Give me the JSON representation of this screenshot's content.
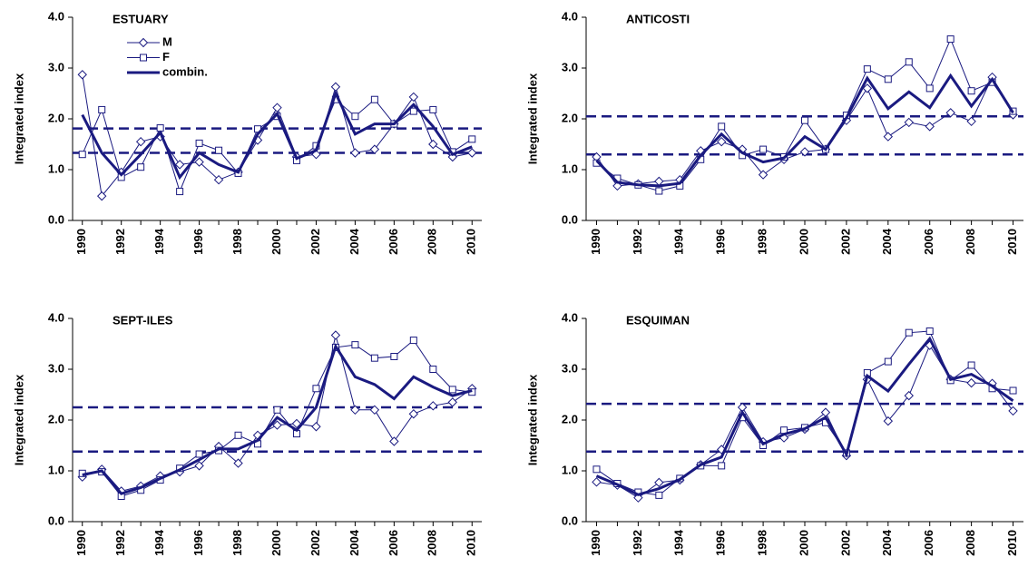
{
  "chart_data": [
    {
      "type": "line",
      "title": "ESTUARY",
      "ylabel": "Integrated index",
      "legend": "upper left",
      "x": [
        1990,
        1991,
        1992,
        1993,
        1994,
        1995,
        1996,
        1997,
        1998,
        1999,
        2000,
        2001,
        2002,
        2003,
        2004,
        2005,
        2006,
        2007,
        2008,
        2009,
        2010
      ],
      "xlim": [
        1989.5,
        2010.5
      ],
      "xticks": [
        1990,
        1992,
        1994,
        1996,
        1998,
        2000,
        2002,
        2004,
        2006,
        2008,
        2010
      ],
      "ylim": [
        0,
        4
      ],
      "yticks": [
        {
          "value": 0,
          "label": "0.0"
        },
        {
          "value": 1,
          "label": "1.0"
        },
        {
          "value": 2,
          "label": "2.0"
        },
        {
          "value": 3,
          "label": "3.0"
        },
        {
          "value": 4,
          "label": "4.0"
        }
      ],
      "hlines": [
        1.33,
        1.81
      ],
      "series": [
        {
          "name": "M",
          "color": "#1a1a80",
          "marker": "diamond",
          "width": 1,
          "values": [
            2.87,
            0.48,
            0.95,
            1.55,
            1.65,
            1.1,
            1.15,
            0.8,
            0.95,
            1.58,
            2.22,
            1.25,
            1.3,
            2.63,
            1.33,
            1.4,
            1.9,
            2.43,
            1.5,
            1.25,
            1.33
          ]
        },
        {
          "name": "F",
          "color": "#1a1a80",
          "marker": "square",
          "width": 1,
          "values": [
            1.3,
            2.18,
            0.85,
            1.05,
            1.82,
            0.57,
            1.52,
            1.38,
            0.93,
            1.8,
            2.05,
            1.18,
            1.47,
            2.38,
            2.05,
            2.38,
            1.9,
            2.15,
            2.18,
            1.35,
            1.6
          ]
        },
        {
          "name": "combin.",
          "color": "#1a1a80",
          "marker": "none",
          "width": 3,
          "values": [
            2.08,
            1.33,
            0.9,
            1.3,
            1.73,
            0.85,
            1.33,
            1.1,
            0.95,
            1.7,
            2.1,
            1.22,
            1.38,
            2.5,
            1.7,
            1.9,
            1.9,
            2.28,
            1.85,
            1.3,
            1.45
          ]
        }
      ]
    },
    {
      "type": "line",
      "title": "ANTICOSTI",
      "ylabel": "Integrated index",
      "x": [
        1990,
        1991,
        1992,
        1993,
        1994,
        1995,
        1996,
        1997,
        1998,
        1999,
        2000,
        2001,
        2002,
        2003,
        2004,
        2005,
        2006,
        2007,
        2008,
        2009,
        2010
      ],
      "xlim": [
        1989.5,
        2010.5
      ],
      "xticks": [
        1990,
        1992,
        1994,
        1996,
        1998,
        2000,
        2002,
        2004,
        2006,
        2008,
        2010
      ],
      "ylim": [
        0,
        4
      ],
      "yticks": [
        {
          "value": 0,
          "label": "0.0"
        },
        {
          "value": 1,
          "label": "1.0"
        },
        {
          "value": 2,
          "label": "2.0"
        },
        {
          "value": 3,
          "label": "3.0"
        },
        {
          "value": 4,
          "label": "4.0"
        }
      ],
      "hlines": [
        1.3,
        2.05
      ],
      "series": [
        {
          "color": "#1a1a80",
          "marker": "diamond",
          "width": 1,
          "values": [
            1.25,
            0.68,
            0.72,
            0.77,
            0.8,
            1.37,
            1.55,
            1.4,
            0.9,
            1.2,
            1.35,
            1.4,
            1.97,
            2.6,
            1.65,
            1.93,
            1.85,
            2.12,
            1.95,
            2.82,
            2.08
          ]
        },
        {
          "color": "#1a1a80",
          "marker": "square",
          "width": 1,
          "values": [
            1.13,
            0.83,
            0.7,
            0.58,
            0.68,
            1.2,
            1.85,
            1.28,
            1.4,
            1.25,
            1.97,
            1.4,
            2.07,
            2.98,
            2.78,
            3.12,
            2.6,
            3.57,
            2.55,
            2.72,
            2.15
          ]
        },
        {
          "color": "#1a1a80",
          "marker": "none",
          "width": 3,
          "values": [
            1.18,
            0.75,
            0.7,
            0.68,
            0.73,
            1.28,
            1.7,
            1.33,
            1.15,
            1.23,
            1.65,
            1.4,
            2.02,
            2.8,
            2.2,
            2.53,
            2.22,
            2.85,
            2.25,
            2.78,
            2.12
          ]
        }
      ]
    },
    {
      "type": "line",
      "title": "SEPT-ILES",
      "ylabel": "Integrated index",
      "x": [
        1990,
        1991,
        1992,
        1993,
        1994,
        1995,
        1996,
        1997,
        1998,
        1999,
        2000,
        2001,
        2002,
        2003,
        2004,
        2005,
        2006,
        2007,
        2008,
        2009,
        2010
      ],
      "xlim": [
        1989.5,
        2010.5
      ],
      "xticks": [
        1990,
        1992,
        1994,
        1996,
        1998,
        2000,
        2002,
        2004,
        2006,
        2008,
        2010
      ],
      "ylim": [
        0,
        4
      ],
      "yticks": [
        {
          "value": 0,
          "label": "0.0"
        },
        {
          "value": 1,
          "label": "1.0"
        },
        {
          "value": 2,
          "label": "2.0"
        },
        {
          "value": 3,
          "label": "3.0"
        },
        {
          "value": 4,
          "label": "4.0"
        }
      ],
      "hlines": [
        1.38,
        2.25
      ],
      "series": [
        {
          "color": "#1a1a80",
          "marker": "diamond",
          "width": 1,
          "values": [
            0.88,
            1.03,
            0.6,
            0.7,
            0.9,
            0.98,
            1.1,
            1.48,
            1.15,
            1.7,
            1.9,
            1.93,
            1.87,
            3.67,
            2.2,
            2.2,
            1.58,
            2.12,
            2.28,
            2.35,
            2.62
          ]
        },
        {
          "color": "#1a1a80",
          "marker": "square",
          "width": 1,
          "values": [
            0.95,
            0.98,
            0.5,
            0.62,
            0.82,
            1.05,
            1.33,
            1.4,
            1.7,
            1.53,
            2.2,
            1.73,
            2.62,
            3.43,
            3.48,
            3.22,
            3.25,
            3.57,
            3.0,
            2.6,
            2.55
          ]
        },
        {
          "color": "#1a1a80",
          "marker": "none",
          "width": 3,
          "values": [
            0.92,
            1.0,
            0.55,
            0.67,
            0.85,
            1.02,
            1.22,
            1.43,
            1.43,
            1.6,
            2.05,
            1.8,
            2.25,
            3.45,
            2.85,
            2.7,
            2.42,
            2.85,
            2.65,
            2.48,
            2.58
          ]
        }
      ]
    },
    {
      "type": "line",
      "title": "ESQUIMAN",
      "ylabel": "Integrated index",
      "x": [
        1990,
        1991,
        1992,
        1993,
        1994,
        1995,
        1996,
        1997,
        1998,
        1999,
        2000,
        2001,
        2002,
        2003,
        2004,
        2005,
        2006,
        2007,
        2008,
        2009,
        2010
      ],
      "xlim": [
        1989.5,
        2010.5
      ],
      "xticks": [
        1990,
        1992,
        1994,
        1996,
        1998,
        2000,
        2002,
        2004,
        2006,
        2008,
        2010
      ],
      "ylim": [
        0,
        4
      ],
      "yticks": [
        {
          "value": 0,
          "label": "0.0"
        },
        {
          "value": 1,
          "label": "1.0"
        },
        {
          "value": 2,
          "label": "2.0"
        },
        {
          "value": 3,
          "label": "3.0"
        },
        {
          "value": 4,
          "label": "4.0"
        }
      ],
      "hlines": [
        1.38,
        2.32
      ],
      "series": [
        {
          "color": "#1a1a80",
          "marker": "diamond",
          "width": 1,
          "values": [
            0.78,
            0.72,
            0.47,
            0.77,
            0.82,
            1.12,
            1.42,
            2.25,
            1.57,
            1.65,
            1.82,
            2.15,
            1.3,
            2.8,
            1.98,
            2.48,
            3.47,
            2.8,
            2.73,
            2.72,
            2.18
          ]
        },
        {
          "color": "#1a1a80",
          "marker": "square",
          "width": 1,
          "values": [
            1.03,
            0.75,
            0.58,
            0.52,
            0.85,
            1.1,
            1.1,
            2.05,
            1.5,
            1.8,
            1.85,
            1.95,
            1.35,
            2.93,
            3.15,
            3.72,
            3.75,
            2.78,
            3.08,
            2.62,
            2.58
          ]
        },
        {
          "color": "#1a1a80",
          "marker": "none",
          "width": 3,
          "values": [
            0.9,
            0.73,
            0.53,
            0.65,
            0.83,
            1.12,
            1.27,
            2.15,
            1.53,
            1.72,
            1.83,
            2.05,
            1.32,
            2.87,
            2.57,
            3.1,
            3.6,
            2.8,
            2.9,
            2.67,
            2.38
          ]
        }
      ]
    }
  ]
}
